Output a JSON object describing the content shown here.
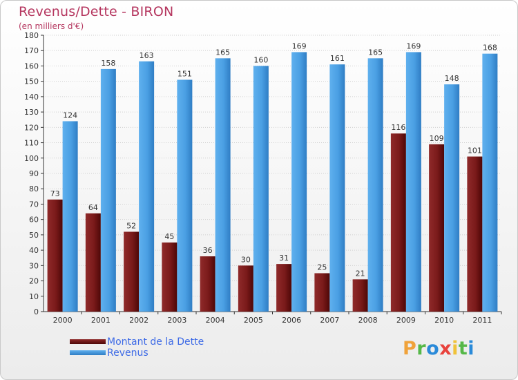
{
  "title": "Revenus/Dette - BIRON",
  "subtitle": "(en milliers d'€)",
  "brand": {
    "letters": [
      "P",
      "r",
      "o",
      "x",
      "i",
      "t",
      "i"
    ],
    "colors": [
      "#f0a23a",
      "#56b848",
      "#2a8ad9",
      "#e8423c",
      "#f0c23a",
      "#56b848",
      "#2a8ad9"
    ]
  },
  "chart_data": {
    "type": "bar",
    "title": "Revenus/Dette - BIRON",
    "subtitle": "(en milliers d'€)",
    "categories": [
      "2000",
      "2001",
      "2002",
      "2003",
      "2004",
      "2005",
      "2006",
      "2007",
      "2008",
      "2009",
      "2010",
      "2011"
    ],
    "series": [
      {
        "name": "Montant de la Dette",
        "color": "#7a1a1a",
        "values": [
          73,
          64,
          52,
          45,
          36,
          30,
          31,
          25,
          21,
          116,
          109,
          101
        ]
      },
      {
        "name": "Revenus",
        "color": "#4a9fe3",
        "values": [
          124,
          158,
          163,
          151,
          165,
          160,
          169,
          161,
          165,
          169,
          148,
          168
        ]
      }
    ],
    "ylim": [
      0,
      180
    ],
    "yticks": [
      0,
      10,
      20,
      30,
      40,
      50,
      60,
      70,
      80,
      90,
      100,
      110,
      120,
      130,
      140,
      150,
      160,
      170,
      180
    ],
    "grid": true,
    "legend_position": "bottom-left"
  }
}
